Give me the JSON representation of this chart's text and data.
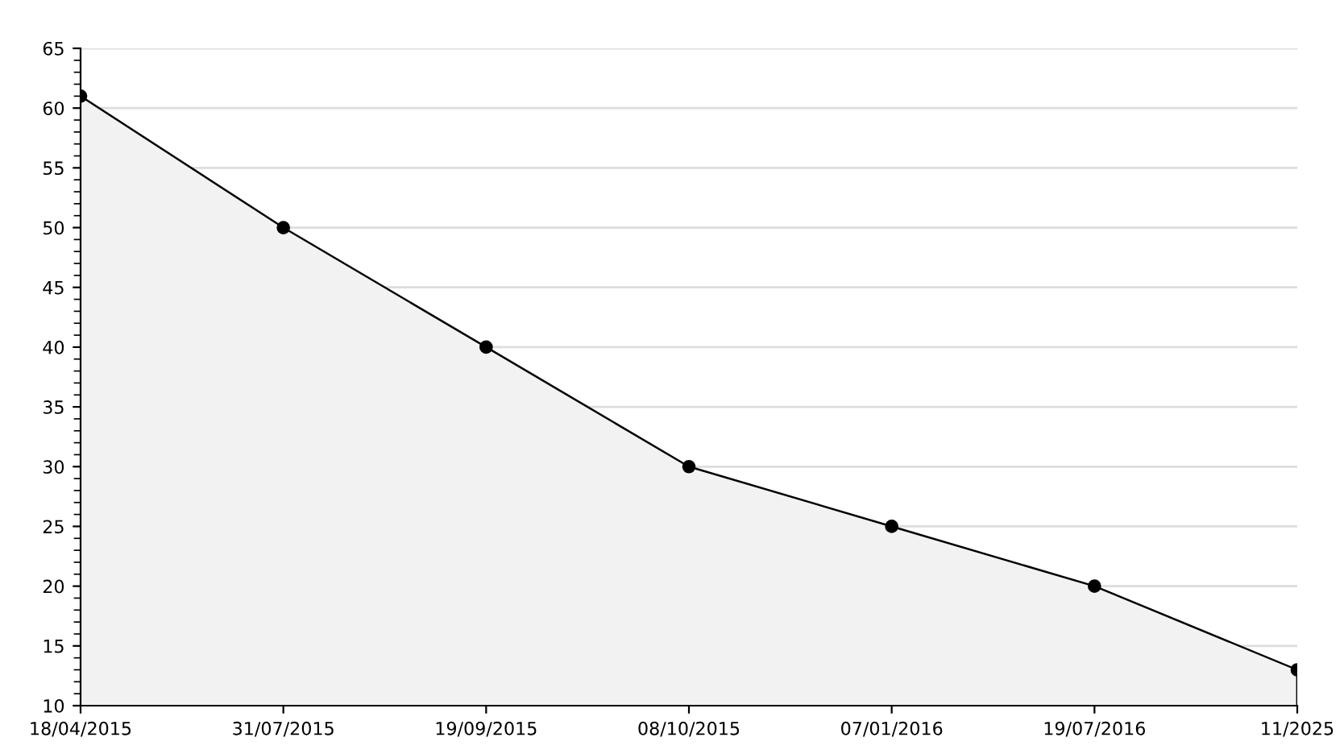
{
  "chart_data": {
    "type": "area",
    "categories": [
      "18/04/2015",
      "31/07/2015",
      "19/09/2015",
      "08/10/2015",
      "07/01/2016",
      "19/07/2016",
      "11/2025"
    ],
    "series": [
      {
        "color": "#000000",
        "values": [
          61,
          50,
          40,
          30,
          25,
          20,
          13
        ]
      }
    ],
    "ylim": [
      10,
      65
    ],
    "yticks": [
      10,
      15,
      20,
      25,
      30,
      35,
      40,
      45,
      50,
      55,
      60,
      65
    ],
    "grid": "y",
    "marker": "circle",
    "line_style": "solid"
  }
}
